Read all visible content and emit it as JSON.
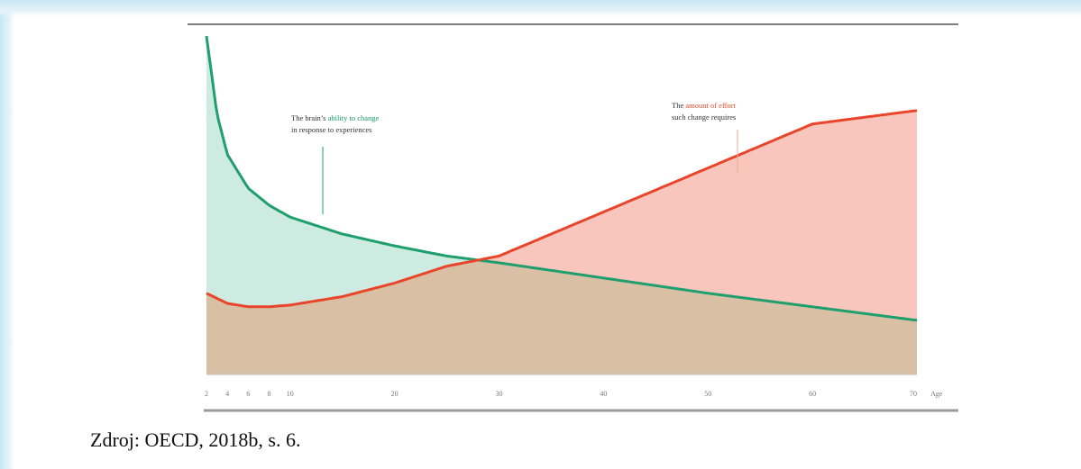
{
  "chart_data": {
    "type": "area",
    "title": "",
    "xlabel": "Age",
    "ylabel": "",
    "xlim": [
      2,
      70
    ],
    "ylim": [
      0,
      100
    ],
    "x_ticks": [
      2,
      4,
      6,
      8,
      10,
      20,
      30,
      40,
      50,
      60,
      70
    ],
    "x_tick_labels": [
      "2",
      "4",
      "6",
      "8",
      "10",
      "20",
      "30",
      "40",
      "50",
      "60",
      "70"
    ],
    "grid": false,
    "series": [
      {
        "key": "ability",
        "color": "#1f9e6e",
        "fill": "#cdebe0",
        "x": [
          2,
          3,
          4,
          6,
          8,
          10,
          15,
          20,
          25,
          30,
          40,
          50,
          60,
          70
        ],
        "y": [
          100,
          77,
          65,
          55,
          50,
          46.5,
          41.5,
          38,
          35,
          33,
          28.5,
          24,
          20,
          16
        ]
      },
      {
        "key": "effort",
        "color": "#e8452b",
        "fill": "#f8c6bd",
        "x": [
          2,
          4,
          6,
          8,
          10,
          15,
          20,
          25,
          30,
          40,
          50,
          60,
          70
        ],
        "y": [
          24,
          21,
          20,
          20,
          20.5,
          23,
          27,
          32,
          35,
          48,
          61,
          74,
          78
        ]
      }
    ],
    "overlap_fill": "#d9c0a4",
    "annotations": [
      {
        "key": "ability_label",
        "lines": [
          [
            {
              "text": "The brain’s ",
              "tone": "plain"
            },
            {
              "text": "ability to change",
              "tone": "green"
            }
          ],
          [
            {
              "text": "in response to experiences",
              "tone": "plain"
            }
          ]
        ]
      },
      {
        "key": "effort_label",
        "lines": [
          [
            {
              "text": "The ",
              "tone": "plain"
            },
            {
              "text": "amount of effort",
              "tone": "red"
            }
          ],
          [
            {
              "text": "such change requires",
              "tone": "plain"
            }
          ]
        ]
      }
    ]
  },
  "caption": {
    "source": "Zdroj: OECD, 2018b, s. 6."
  },
  "colors": {
    "green": "#1f9e6e",
    "red": "#e8452b",
    "axis": "#999999",
    "top_rule": "#555555"
  }
}
